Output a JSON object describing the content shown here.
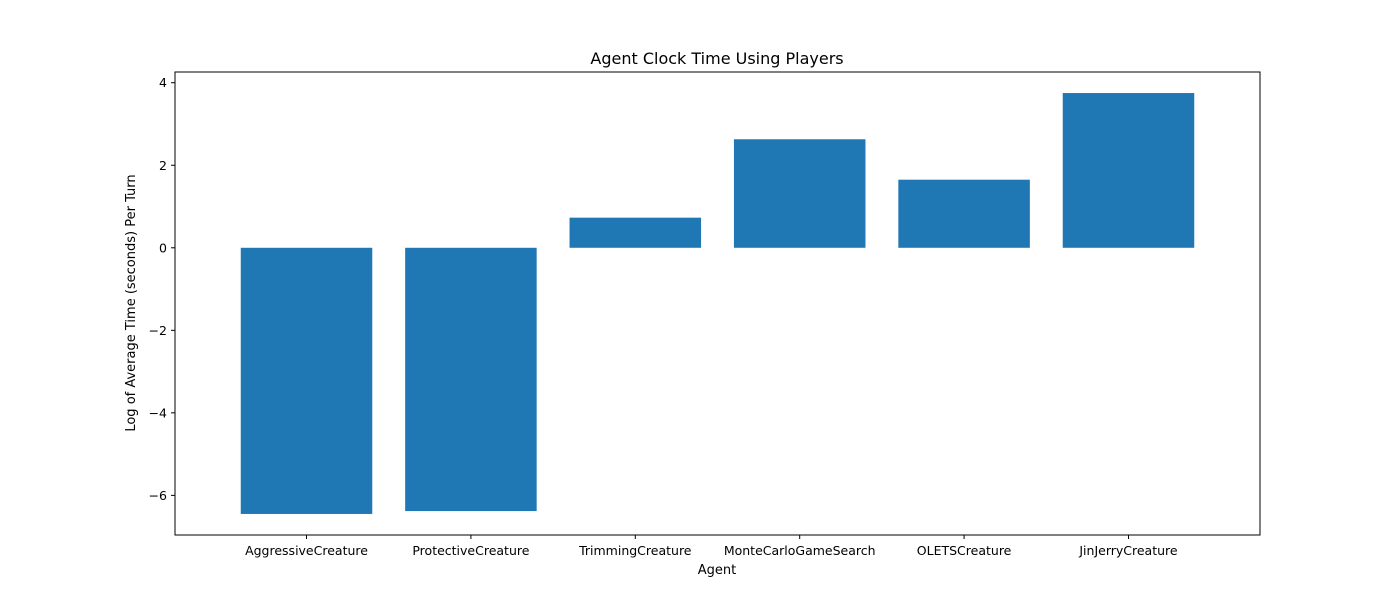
{
  "chart_data": {
    "type": "bar",
    "title": "Agent Clock Time Using Players",
    "xlabel": "Agent",
    "ylabel": "Log of Average Time (seconds) Per Turn",
    "categories": [
      "AggressiveCreature",
      "ProtectiveCreature",
      "TrimmingCreature",
      "MonteCarloGameSearch",
      "OLETSCreature",
      "JinJerryCreature"
    ],
    "values": [
      -6.45,
      -6.38,
      0.73,
      2.63,
      1.65,
      3.75
    ],
    "ylim": [
      -6.96,
      4.26
    ],
    "yticks": [
      -6,
      -4,
      -2,
      0,
      2,
      4
    ],
    "ytick_labels": [
      "−6",
      "−4",
      "−2",
      "0",
      "2",
      "4"
    ],
    "bar_color": "#1f77b4",
    "grid": false
  }
}
